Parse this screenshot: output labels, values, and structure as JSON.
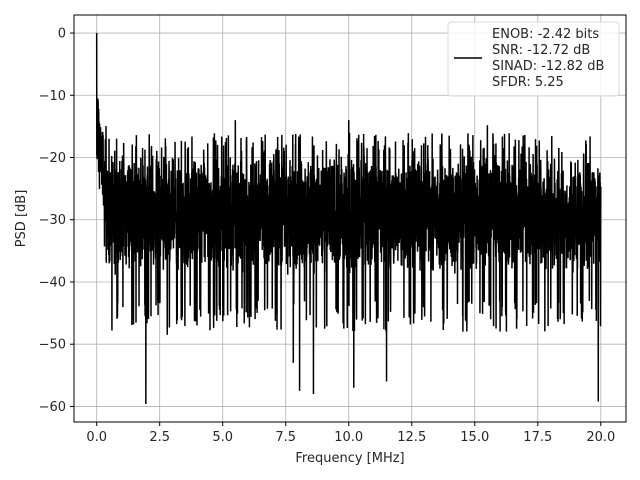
{
  "chart_data": {
    "type": "line",
    "xlabel": "Frequency [MHz]",
    "ylabel": "PSD [dB]",
    "xlim": [
      -0.9,
      21.0
    ],
    "ylim": [
      -62.5,
      2.9
    ],
    "xticks": [
      0.0,
      2.5,
      5.0,
      7.5,
      10.0,
      12.5,
      15.0,
      17.5,
      20.0
    ],
    "xtick_labels": [
      "0.0",
      "2.5",
      "5.0",
      "7.5",
      "10.0",
      "12.5",
      "15.0",
      "17.5",
      "20.0"
    ],
    "yticks": [
      0,
      -10,
      -20,
      -30,
      -40,
      -50,
      -60
    ],
    "ytick_labels": [
      "0",
      "−10",
      "−20",
      "−30",
      "−40",
      "−50",
      "−60"
    ],
    "grid": true,
    "legend": {
      "placement": "top-right",
      "lines": [
        "ENOB: -2.42 bits",
        "SNR: -12.72 dB",
        "SINAD: -12.82 dB",
        "SFDR: 5.25"
      ]
    },
    "series": [
      {
        "color": "#000000",
        "x_range": [
          0.0,
          20.0
        ],
        "noise_floor_db": -29,
        "noise_envelope_db": [
          -43,
          -16
        ],
        "peak": {
          "x": 0.0,
          "y": 0.0
        },
        "dips": [
          {
            "x": 1.95,
            "y": -59.6
          },
          {
            "x": 2.8,
            "y": -48.5
          },
          {
            "x": 7.8,
            "y": -53.0
          },
          {
            "x": 8.05,
            "y": -57.5
          },
          {
            "x": 8.6,
            "y": -58.0
          },
          {
            "x": 10.2,
            "y": -57.0
          },
          {
            "x": 11.5,
            "y": -56.0
          },
          {
            "x": 19.9,
            "y": -59.2
          }
        ],
        "spikes": [
          {
            "x": 5.5,
            "y": -14.0
          },
          {
            "x": 10.0,
            "y": -14.0
          },
          {
            "x": 15.5,
            "y": -14.8
          }
        ]
      }
    ]
  }
}
